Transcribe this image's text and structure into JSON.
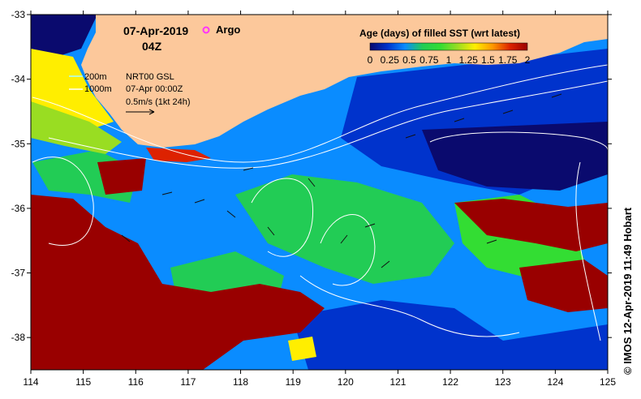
{
  "map": {
    "date": "07-Apr-2019",
    "time": "04Z",
    "marker_legend": "Argo",
    "marker_color": "#ff33ff",
    "contour_labels": [
      "200m",
      "1000m"
    ],
    "product": "NRT00 GSL",
    "product_time": "07-Apr 00:00Z",
    "vector_scale": "0.5m/s (1kt 24h)",
    "colorbar": {
      "title": "Age (days) of filled SST (wrt latest)",
      "ticks": [
        "0",
        "0.25",
        "0.5",
        "0.75",
        "1",
        "1.25",
        "1.5",
        "1.75",
        "2"
      ],
      "range": [
        0,
        2
      ],
      "colors": [
        "#0a0a6e",
        "#0033cc",
        "#0a8cff",
        "#22cc55",
        "#33dd33",
        "#99dd22",
        "#ffee00",
        "#ff9900",
        "#dd2200",
        "#990000"
      ]
    },
    "lon_ticks": [
      "114",
      "115",
      "116",
      "117",
      "118",
      "119",
      "120",
      "121",
      "122",
      "123",
      "124",
      "125"
    ],
    "lat_ticks": [
      "-33",
      "-34",
      "-35",
      "-36",
      "-37",
      "-38"
    ],
    "lon_range": [
      114,
      125
    ],
    "lat_range": [
      -38.5,
      -33
    ],
    "land_color": "#fcc89b",
    "credit": "© IMOS 12-Apr-2019 11:49 Hobart"
  }
}
